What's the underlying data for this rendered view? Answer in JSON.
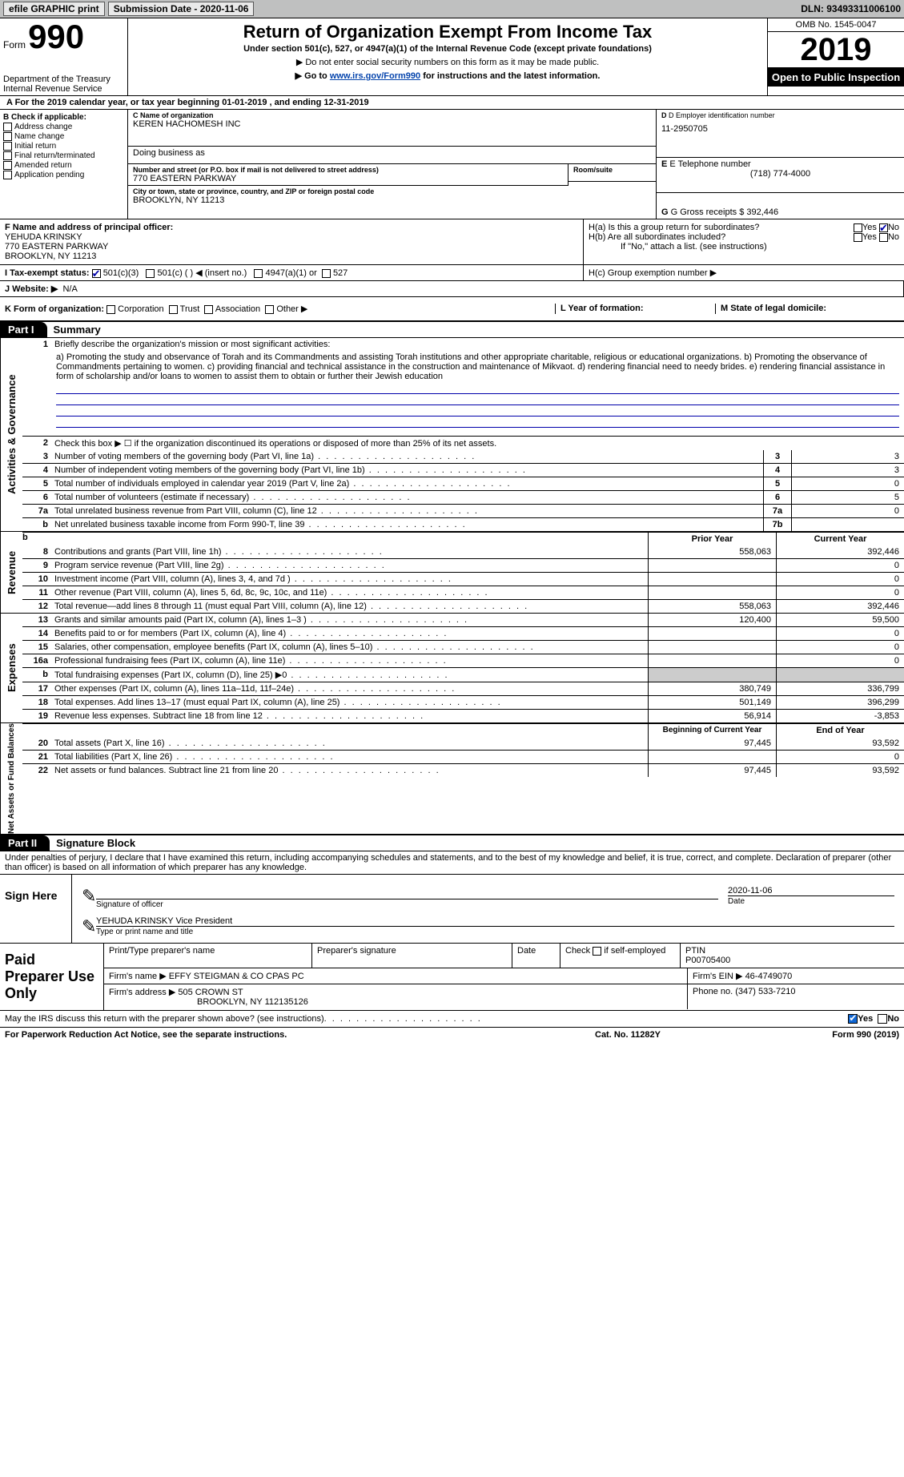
{
  "topbar": {
    "efile": "efile GRAPHIC print",
    "submission_label": "Submission Date - 2020-11-06",
    "dln": "DLN: 93493311006100"
  },
  "header": {
    "form_word": "Form",
    "form_num": "990",
    "dept": "Department of the Treasury\nInternal Revenue Service",
    "title": "Return of Organization Exempt From Income Tax",
    "sub": "Under section 501(c), 527, or 4947(a)(1) of the Internal Revenue Code (except private foundations)",
    "sub2": "▶ Do not enter social security numbers on this form as it may be made public.",
    "sub3_pre": "▶ Go to ",
    "sub3_link": "www.irs.gov/Form990",
    "sub3_post": " for instructions and the latest information.",
    "omb": "OMB No. 1545-0047",
    "year": "2019",
    "open": "Open to Public Inspection"
  },
  "secA": "A   For the 2019 calendar year, or tax year beginning 01-01-2019    , and ending 12-31-2019",
  "boxB": {
    "hdr": "B Check if applicable:",
    "addr": "Address change",
    "name": "Name change",
    "init": "Initial return",
    "term": "Final return/terminated",
    "amend": "Amended return",
    "app": "Application pending"
  },
  "boxC": {
    "lbl": "C Name of organization",
    "org": "KEREN HACHOMESH INC",
    "dba": "Doing business as",
    "addr_lbl": "Number and street (or P.O. box if mail is not delivered to street address)",
    "addr": "770 EASTERN PARKWAY",
    "suite": "Room/suite",
    "city_lbl": "City or town, state or province, country, and ZIP or foreign postal code",
    "city": "BROOKLYN, NY  11213"
  },
  "boxD": {
    "lbl": "D Employer identification number",
    "val": "11-2950705"
  },
  "boxE": {
    "lbl": "E Telephone number",
    "val": "(718) 774-4000"
  },
  "boxG": {
    "lbl": "G Gross receipts $",
    "val": "392,446"
  },
  "boxF": {
    "lbl": "F  Name and address of principal officer:",
    "name": "YEHUDA KRINSKY",
    "addr1": "770 EASTERN PARKWAY",
    "addr2": "BROOKLYN, NY  11213"
  },
  "boxH": {
    "a": "H(a)  Is this a group return for subordinates?",
    "b": "H(b)  Are all subordinates included?",
    "bnote": "If \"No,\" attach a list. (see instructions)",
    "c": "H(c)  Group exemption number ▶",
    "yes": "Yes",
    "no": "No"
  },
  "lineI": {
    "lbl": "I   Tax-exempt status:",
    "c3": "501(c)(3)",
    "c": "501(c) (   ) ◀ (insert no.)",
    "a4947": "4947(a)(1) or",
    "s527": "527"
  },
  "lineJ": {
    "lbl": "J   Website: ▶",
    "val": "N/A"
  },
  "lineK": {
    "lbl": "K Form of organization:",
    "corp": "Corporation",
    "trust": "Trust",
    "assoc": "Association",
    "other": "Other ▶",
    "L": "L Year of formation:",
    "M": "M State of legal domicile:"
  },
  "part1": {
    "tab": "Part I",
    "title": "Summary"
  },
  "gov": {
    "vtab": "Activities & Governance",
    "l1": "Briefly describe the organization's mission or most significant activities:",
    "mission": "a) Promoting the study and observance of Torah and its Commandments and assisting Torah institutions and other appropriate charitable, religious or educational organizations. b) Promoting the observance of Commandments pertaining to women. c) providing financial and technical assistance in the construction and maintenance of Mikvaot. d) rendering financial need to needy brides. e) rendering financial assistance in form of scholarship and/or loans to women to assist them to obtain or further their Jewish education",
    "l2": "Check this box ▶ ☐ if the organization discontinued its operations or disposed of more than 25% of its net assets.",
    "rows": [
      {
        "n": "3",
        "t": "Number of voting members of the governing body (Part VI, line 1a)",
        "c": "3",
        "v": "3"
      },
      {
        "n": "4",
        "t": "Number of independent voting members of the governing body (Part VI, line 1b)",
        "c": "4",
        "v": "3"
      },
      {
        "n": "5",
        "t": "Total number of individuals employed in calendar year 2019 (Part V, line 2a)",
        "c": "5",
        "v": "0"
      },
      {
        "n": "6",
        "t": "Total number of volunteers (estimate if necessary)",
        "c": "6",
        "v": "5"
      },
      {
        "n": "7a",
        "t": "Total unrelated business revenue from Part VIII, column (C), line 12",
        "c": "7a",
        "v": "0"
      },
      {
        "n": "b",
        "t": "Net unrelated business taxable income from Form 990-T, line 39",
        "c": "7b",
        "v": ""
      }
    ]
  },
  "rev": {
    "vtab": "Revenue",
    "hdr1": "Prior Year",
    "hdr2": "Current Year",
    "rows": [
      {
        "n": "8",
        "t": "Contributions and grants (Part VIII, line 1h)",
        "p": "558,063",
        "c": "392,446"
      },
      {
        "n": "9",
        "t": "Program service revenue (Part VIII, line 2g)",
        "p": "",
        "c": "0"
      },
      {
        "n": "10",
        "t": "Investment income (Part VIII, column (A), lines 3, 4, and 7d )",
        "p": "",
        "c": "0"
      },
      {
        "n": "11",
        "t": "Other revenue (Part VIII, column (A), lines 5, 6d, 8c, 9c, 10c, and 11e)",
        "p": "",
        "c": "0"
      },
      {
        "n": "12",
        "t": "Total revenue—add lines 8 through 11 (must equal Part VIII, column (A), line 12)",
        "p": "558,063",
        "c": "392,446"
      }
    ]
  },
  "exp": {
    "vtab": "Expenses",
    "rows": [
      {
        "n": "13",
        "t": "Grants and similar amounts paid (Part IX, column (A), lines 1–3 )",
        "p": "120,400",
        "c": "59,500"
      },
      {
        "n": "14",
        "t": "Benefits paid to or for members (Part IX, column (A), line 4)",
        "p": "",
        "c": "0"
      },
      {
        "n": "15",
        "t": "Salaries, other compensation, employee benefits (Part IX, column (A), lines 5–10)",
        "p": "",
        "c": "0"
      },
      {
        "n": "16a",
        "t": "Professional fundraising fees (Part IX, column (A), line 11e)",
        "p": "",
        "c": "0"
      },
      {
        "n": "b",
        "t": "Total fundraising expenses (Part IX, column (D), line 25) ▶0",
        "p": "",
        "c": ""
      },
      {
        "n": "17",
        "t": "Other expenses (Part IX, column (A), lines 11a–11d, 11f–24e)",
        "p": "380,749",
        "c": "336,799"
      },
      {
        "n": "18",
        "t": "Total expenses. Add lines 13–17 (must equal Part IX, column (A), line 25)",
        "p": "501,149",
        "c": "396,299"
      },
      {
        "n": "19",
        "t": "Revenue less expenses. Subtract line 18 from line 12",
        "p": "56,914",
        "c": "-3,853"
      }
    ]
  },
  "net": {
    "vtab": "Net Assets or Fund Balances",
    "hdr1": "Beginning of Current Year",
    "hdr2": "End of Year",
    "rows": [
      {
        "n": "20",
        "t": "Total assets (Part X, line 16)",
        "p": "97,445",
        "c": "93,592"
      },
      {
        "n": "21",
        "t": "Total liabilities (Part X, line 26)",
        "p": "",
        "c": "0"
      },
      {
        "n": "22",
        "t": "Net assets or fund balances. Subtract line 21 from line 20",
        "p": "97,445",
        "c": "93,592"
      }
    ]
  },
  "part2": {
    "tab": "Part II",
    "title": "Signature Block"
  },
  "part2text": "Under penalties of perjury, I declare that I have examined this return, including accompanying schedules and statements, and to the best of my knowledge and belief, it is true, correct, and complete. Declaration of preparer (other than officer) is based on all information of which preparer has any knowledge.",
  "sign": {
    "here": "Sign Here",
    "sigoff": "Signature of officer",
    "date": "Date",
    "dateval": "2020-11-06",
    "nametitle": "YEHUDA KRINSKY Vice President",
    "nt_lbl": "Type or print name and title"
  },
  "prep": {
    "left": "Paid Preparer Use Only",
    "h1": "Print/Type preparer's name",
    "h2": "Preparer's signature",
    "h3": "Date",
    "h4a": "Check",
    "h4b": "if self-employed",
    "h5": "PTIN",
    "ptin": "P00705400",
    "fn": "Firm's name   ▶",
    "firm": "EFFY STEIGMAN & CO CPAS PC",
    "fein_l": "Firm's EIN ▶",
    "fein": "46-4749070",
    "fa": "Firm's address ▶",
    "faddr1": "505 CROWN ST",
    "faddr2": "BROOKLYN, NY  112135126",
    "ph_l": "Phone no.",
    "ph": "(347) 533-7210"
  },
  "discuss": "May the IRS discuss this return with the preparer shown above? (see instructions)",
  "foot": {
    "l": "For Paperwork Reduction Act Notice, see the separate instructions.",
    "m": "Cat. No. 11282Y",
    "r": "Form 990 (2019)"
  }
}
